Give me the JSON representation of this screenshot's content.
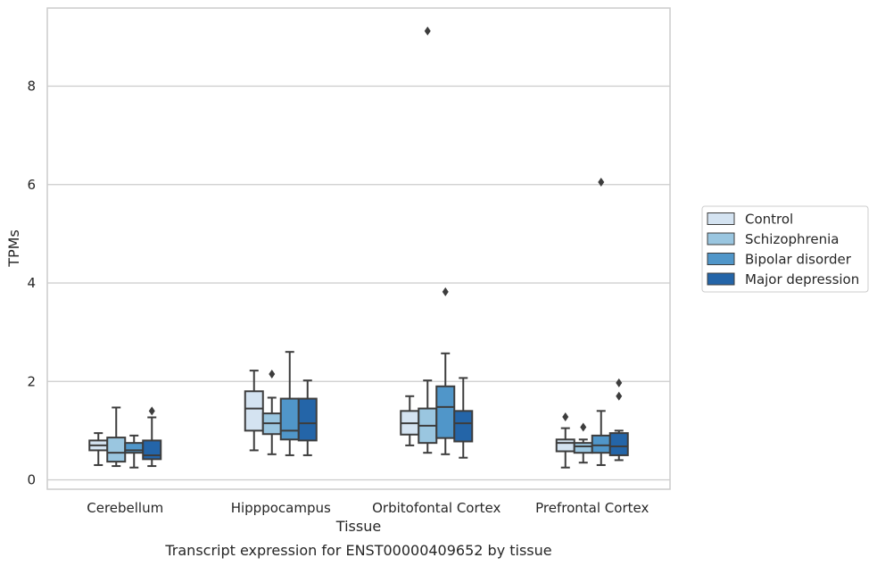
{
  "caption": "Transcript expression for ENST00000409652 by tissue",
  "chart_data": {
    "type": "box",
    "xlabel": "Tissue",
    "ylabel": "TPMs",
    "ylim": [
      -0.18,
      9.5
    ],
    "yticks": [
      0,
      2,
      4,
      6,
      8
    ],
    "grid": "horizontal",
    "legend_position": "right",
    "categories": [
      "Cerebellum",
      "Hipppocampus",
      "Orbitofontal Cortex",
      "Prefrontal Cortex"
    ],
    "series": [
      {
        "name": "Control",
        "color": "#d4e3f1",
        "boxes": [
          {
            "whislo": 0.3,
            "q1": 0.6,
            "med": 0.7,
            "q3": 0.8,
            "whishi": 0.95,
            "fliers": []
          },
          {
            "whislo": 0.6,
            "q1": 1.0,
            "med": 1.45,
            "q3": 1.8,
            "whishi": 2.22,
            "fliers": []
          },
          {
            "whislo": 0.7,
            "q1": 0.92,
            "med": 1.15,
            "q3": 1.4,
            "whishi": 1.7,
            "fliers": []
          },
          {
            "whislo": 0.25,
            "q1": 0.58,
            "med": 0.75,
            "q3": 0.82,
            "whishi": 1.05,
            "fliers": [
              1.28
            ]
          }
        ]
      },
      {
        "name": "Schizophrenia",
        "color": "#9ac6e0",
        "boxes": [
          {
            "whislo": 0.28,
            "q1": 0.37,
            "med": 0.55,
            "q3": 0.86,
            "whishi": 1.47,
            "fliers": []
          },
          {
            "whislo": 0.52,
            "q1": 0.93,
            "med": 1.15,
            "q3": 1.35,
            "whishi": 1.67,
            "fliers": [
              2.15
            ]
          },
          {
            "whislo": 0.55,
            "q1": 0.75,
            "med": 1.1,
            "q3": 1.45,
            "whishi": 2.02,
            "fliers": [
              9.12
            ]
          },
          {
            "whislo": 0.35,
            "q1": 0.55,
            "med": 0.68,
            "q3": 0.75,
            "whishi": 0.82,
            "fliers": [
              1.07
            ]
          }
        ]
      },
      {
        "name": "Bipolar disorder",
        "color": "#5096c9",
        "boxes": [
          {
            "whislo": 0.25,
            "q1": 0.55,
            "med": 0.6,
            "q3": 0.75,
            "whishi": 0.9,
            "fliers": []
          },
          {
            "whislo": 0.5,
            "q1": 0.82,
            "med": 1.0,
            "q3": 1.65,
            "whishi": 2.6,
            "fliers": []
          },
          {
            "whislo": 0.52,
            "q1": 0.85,
            "med": 1.48,
            "q3": 1.9,
            "whishi": 2.57,
            "fliers": [
              3.82
            ]
          },
          {
            "whislo": 0.3,
            "q1": 0.55,
            "med": 0.7,
            "q3": 0.9,
            "whishi": 1.4,
            "fliers": [
              6.05
            ]
          }
        ]
      },
      {
        "name": "Major depression",
        "color": "#2465a8",
        "boxes": [
          {
            "whislo": 0.28,
            "q1": 0.42,
            "med": 0.5,
            "q3": 0.8,
            "whishi": 1.27,
            "fliers": [
              1.4
            ]
          },
          {
            "whislo": 0.5,
            "q1": 0.8,
            "med": 1.15,
            "q3": 1.65,
            "whishi": 2.02,
            "fliers": []
          },
          {
            "whislo": 0.45,
            "q1": 0.78,
            "med": 1.15,
            "q3": 1.4,
            "whishi": 2.07,
            "fliers": []
          },
          {
            "whislo": 0.4,
            "q1": 0.5,
            "med": 0.68,
            "q3": 0.95,
            "whishi": 1.0,
            "fliers": [
              1.7,
              1.97
            ]
          }
        ]
      }
    ]
  }
}
